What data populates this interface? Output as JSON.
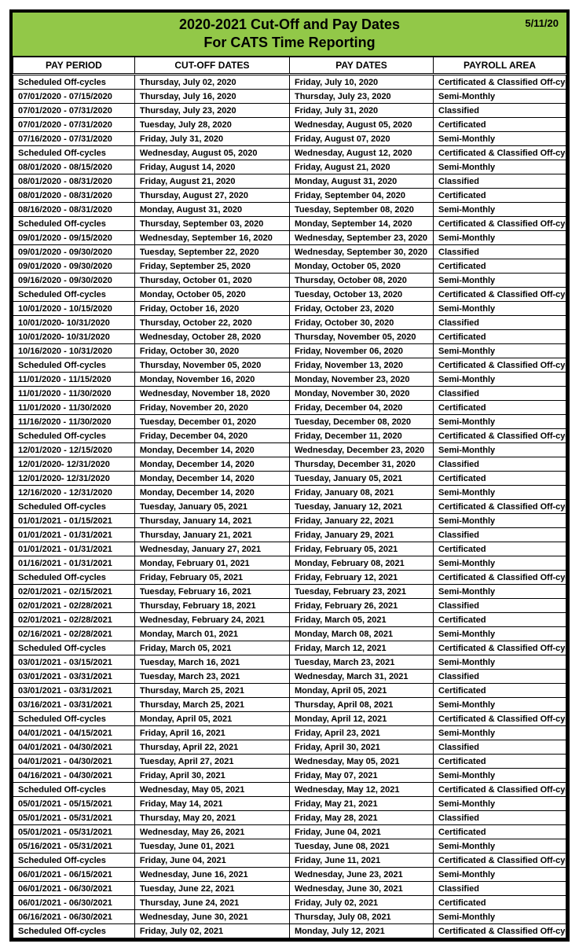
{
  "header": {
    "title_line1": "2020-2021 Cut-Off and Pay Dates",
    "title_line2": "For CATS Time Reporting",
    "date_stamp": "5/11/20",
    "header_bg": "#92c848"
  },
  "table": {
    "columns": [
      "PAY PERIOD",
      "CUT-OFF DATES",
      "PAY DATES",
      "PAYROLL AREA"
    ],
    "rows": [
      [
        "Scheduled Off-cycles",
        "Thursday, July 02, 2020",
        "Friday, July 10, 2020",
        "Certificated & Classified Off-cycles"
      ],
      [
        "07/01/2020 - 07/15/2020",
        "Thursday, July 16, 2020",
        "Thursday, July 23, 2020",
        "Semi-Monthly"
      ],
      [
        "07/01/2020 - 07/31/2020",
        "Thursday, July 23, 2020",
        "Friday, July 31, 2020",
        "Classified"
      ],
      [
        "07/01/2020 - 07/31/2020",
        "Tuesday, July 28, 2020",
        "Wednesday, August 05, 2020",
        "Certificated"
      ],
      [
        "07/16/2020 - 07/31/2020",
        "Friday, July 31, 2020",
        "Friday, August 07, 2020",
        "Semi-Monthly"
      ],
      [
        "Scheduled Off-cycles",
        "Wednesday, August 05, 2020",
        "Wednesday, August 12, 2020",
        "Certificated & Classified Off-cycles"
      ],
      [
        "08/01/2020 - 08/15/2020",
        "Friday, August 14, 2020",
        "Friday, August 21, 2020",
        "Semi-Monthly"
      ],
      [
        "08/01/2020 - 08/31/2020",
        "Friday, August 21, 2020",
        "Monday, August 31, 2020",
        "Classified"
      ],
      [
        "08/01/2020 - 08/31/2020",
        "Thursday, August 27, 2020",
        "Friday, September 04, 2020",
        "Certificated"
      ],
      [
        "08/16/2020 - 08/31/2020",
        "Monday, August 31, 2020",
        "Tuesday, September 08, 2020",
        "Semi-Monthly"
      ],
      [
        "Scheduled Off-cycles",
        "Thursday, September 03, 2020",
        "Monday, September 14, 2020",
        "Certificated & Classified Off-cycles"
      ],
      [
        "09/01/2020 - 09/15/2020",
        "Wednesday, September 16, 2020",
        "Wednesday, September 23, 2020",
        "Semi-Monthly"
      ],
      [
        "09/01/2020 - 09/30/2020",
        "Tuesday, September 22, 2020",
        "Wednesday, September 30, 2020",
        "Classified"
      ],
      [
        "09/01/2020 - 09/30/2020",
        "Friday, September 25, 2020",
        "Monday, October 05, 2020",
        "Certificated"
      ],
      [
        "09/16/2020 - 09/30/2020",
        "Thursday, October 01, 2020",
        "Thursday, October 08, 2020",
        "Semi-Monthly"
      ],
      [
        "Scheduled Off-cycles",
        "Monday, October 05, 2020",
        "Tuesday, October 13, 2020",
        "Certificated & Classified Off-cycles"
      ],
      [
        "10/01/2020 - 10/15/2020",
        "Friday, October 16, 2020",
        "Friday, October 23, 2020",
        "Semi-Monthly"
      ],
      [
        "10/01/2020- 10/31/2020",
        "Thursday, October 22, 2020",
        "Friday, October 30, 2020",
        "Classified"
      ],
      [
        "10/01/2020- 10/31/2020",
        "Wednesday, October 28, 2020",
        "Thursday, November 05, 2020",
        "Certificated"
      ],
      [
        "10/16/2020 - 10/31/2020",
        "Friday, October 30, 2020",
        "Friday, November 06, 2020",
        "Semi-Monthly"
      ],
      [
        "Scheduled Off-cycles",
        "Thursday, November 05, 2020",
        "Friday, November 13, 2020",
        "Certificated & Classified Off-cycles"
      ],
      [
        "11/01/2020 - 11/15/2020",
        "Monday, November 16, 2020",
        "Monday, November 23, 2020",
        "Semi-Monthly"
      ],
      [
        "11/01/2020 - 11/30/2020",
        "Wednesday, November 18, 2020",
        "Monday, November 30, 2020",
        "Classified"
      ],
      [
        "11/01/2020 - 11/30/2020",
        "Friday, November 20, 2020",
        "Friday, December 04, 2020",
        "Certificated"
      ],
      [
        "11/16/2020 - 11/30/2020",
        "Tuesday, December 01, 2020",
        "Tuesday, December 08, 2020",
        "Semi-Monthly"
      ],
      [
        "Scheduled Off-cycles",
        "Friday, December 04, 2020",
        "Friday, December 11, 2020",
        "Certificated & Classified Off-cycles"
      ],
      [
        "12/01/2020 - 12/15/2020",
        "Monday, December 14, 2020",
        "Wednesday, December 23, 2020",
        "Semi-Monthly"
      ],
      [
        "12/01/2020- 12/31/2020",
        "Monday, December 14, 2020",
        "Thursday, December 31, 2020",
        "Classified"
      ],
      [
        "12/01/2020- 12/31/2020",
        "Monday, December 14, 2020",
        "Tuesday, January 05, 2021",
        "Certificated"
      ],
      [
        "12/16/2020 - 12/31/2020",
        "Monday, December 14, 2020",
        "Friday, January 08, 2021",
        "Semi-Monthly"
      ],
      [
        "Scheduled Off-cycles",
        "Tuesday, January 05, 2021",
        "Tuesday, January 12, 2021",
        "Certificated & Classified Off-cycles"
      ],
      [
        "01/01/2021 - 01/15/2021",
        "Thursday, January 14, 2021",
        "Friday, January 22, 2021",
        "Semi-Monthly"
      ],
      [
        "01/01/2021 - 01/31/2021",
        "Thursday, January 21, 2021",
        "Friday, January 29, 2021",
        "Classified"
      ],
      [
        "01/01/2021 - 01/31/2021",
        "Wednesday, January 27, 2021",
        "Friday, February 05, 2021",
        "Certificated"
      ],
      [
        "01/16/2021 - 01/31/2021",
        "Monday, February 01, 2021",
        "Monday, February 08, 2021",
        "Semi-Monthly"
      ],
      [
        "Scheduled Off-cycles",
        "Friday, February 05, 2021",
        "Friday, February 12, 2021",
        "Certificated & Classified Off-cycles"
      ],
      [
        "02/01/2021 - 02/15/2021",
        "Tuesday, February 16, 2021",
        "Tuesday, February 23, 2021",
        "Semi-Monthly"
      ],
      [
        "02/01/2021 - 02/28/2021",
        "Thursday, February 18, 2021",
        "Friday, February 26, 2021",
        "Classified"
      ],
      [
        "02/01/2021 - 02/28/2021",
        "Wednesday, February 24, 2021",
        "Friday, March 05, 2021",
        "Certificated"
      ],
      [
        "02/16/2021 - 02/28/2021",
        "Monday, March 01, 2021",
        "Monday, March 08, 2021",
        "Semi-Monthly"
      ],
      [
        "Scheduled Off-cycles",
        "Friday, March 05, 2021",
        "Friday, March 12, 2021",
        "Certificated & Classified Off-cycles"
      ],
      [
        "03/01/2021 - 03/15/2021",
        "Tuesday, March 16, 2021",
        "Tuesday, March 23, 2021",
        "Semi-Monthly"
      ],
      [
        "03/01/2021 - 03/31/2021",
        "Tuesday, March 23, 2021",
        "Wednesday, March 31, 2021",
        "Classified"
      ],
      [
        "03/01/2021 - 03/31/2021",
        "Thursday, March 25, 2021",
        "Monday, April 05, 2021",
        "Certificated"
      ],
      [
        "03/16/2021 - 03/31/2021",
        "Thursday, March 25, 2021",
        "Thursday, April 08, 2021",
        "Semi-Monthly"
      ],
      [
        "Scheduled Off-cycles",
        "Monday, April 05, 2021",
        "Monday, April 12, 2021",
        "Certificated & Classified Off-cycles"
      ],
      [
        "04/01/2021 - 04/15/2021",
        "Friday, April 16, 2021",
        "Friday, April 23, 2021",
        "Semi-Monthly"
      ],
      [
        "04/01/2021 - 04/30/2021",
        "Thursday, April 22, 2021",
        "Friday, April 30, 2021",
        "Classified"
      ],
      [
        "04/01/2021 - 04/30/2021",
        "Tuesday, April 27, 2021",
        "Wednesday, May 05, 2021",
        "Certificated"
      ],
      [
        "04/16/2021 - 04/30/2021",
        "Friday, April 30, 2021",
        "Friday, May 07, 2021",
        "Semi-Monthly"
      ],
      [
        "Scheduled Off-cycles",
        "Wednesday, May 05, 2021",
        "Wednesday, May 12, 2021",
        "Certificated & Classified Off-cycles"
      ],
      [
        "05/01/2021 - 05/15/2021",
        "Friday, May 14, 2021",
        "Friday, May 21, 2021",
        "Semi-Monthly"
      ],
      [
        "05/01/2021 - 05/31/2021",
        "Thursday, May 20, 2021",
        "Friday, May 28, 2021",
        "Classified"
      ],
      [
        "05/01/2021 - 05/31/2021",
        "Wednesday, May 26, 2021",
        "Friday, June 04, 2021",
        "Certificated"
      ],
      [
        "05/16/2021 - 05/31/2021",
        "Tuesday, June 01, 2021",
        "Tuesday, June 08, 2021",
        "Semi-Monthly"
      ],
      [
        "Scheduled Off-cycles",
        "Friday, June 04, 2021",
        "Friday, June 11, 2021",
        "Certificated & Classified Off-cycles"
      ],
      [
        "06/01/2021 - 06/15/2021",
        "Wednesday, June 16, 2021",
        "Wednesday, June 23, 2021",
        "Semi-Monthly"
      ],
      [
        "06/01/2021 - 06/30/2021",
        "Tuesday, June 22, 2021",
        "Wednesday, June 30, 2021",
        "Classified"
      ],
      [
        "06/01/2021 - 06/30/2021",
        "Thursday, June 24, 2021",
        "Friday, July 02, 2021",
        "Certificated"
      ],
      [
        "06/16/2021 - 06/30/2021",
        "Wednesday, June 30, 2021",
        "Thursday, July 08, 2021",
        "Semi-Monthly"
      ],
      [
        "Scheduled Off-cycles",
        "Friday, July 02, 2021",
        "Monday, July 12, 2021",
        "Certificated & Classified Off-cycles"
      ]
    ]
  }
}
